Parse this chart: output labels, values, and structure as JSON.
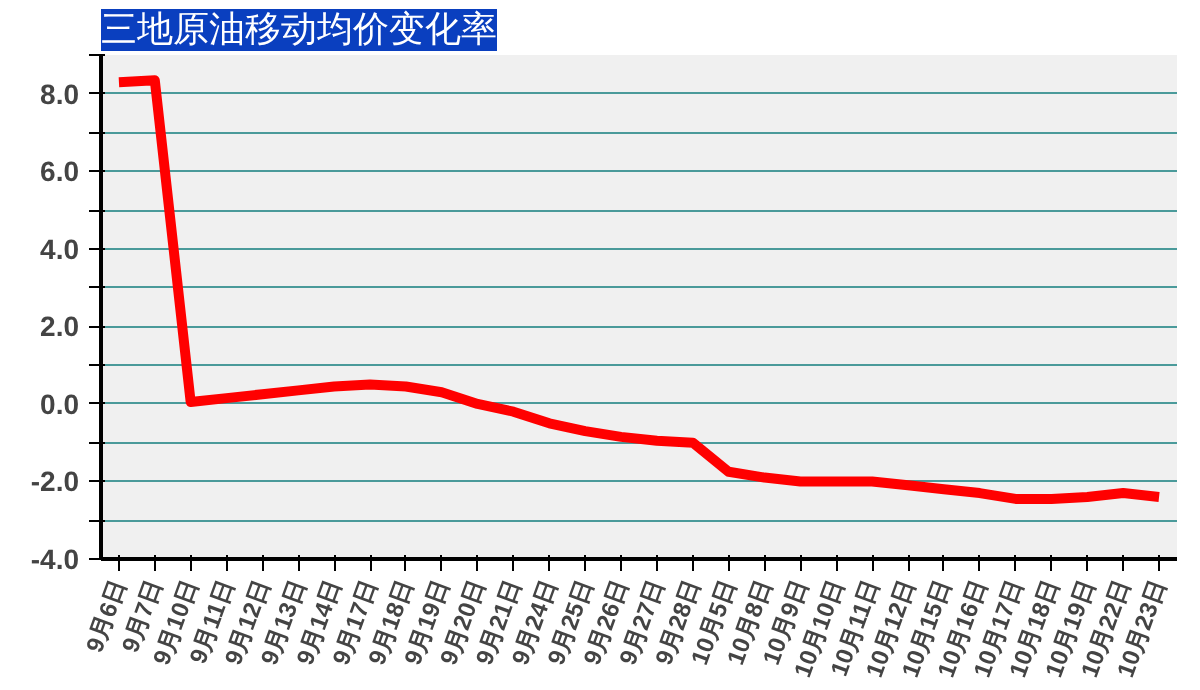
{
  "chart_data": {
    "type": "line",
    "title": "三地原油移动均价变化率",
    "categories": [
      "9月6日",
      "9月7日",
      "9月10日",
      "9月11日",
      "9月12日",
      "9月13日",
      "9月14日",
      "9月17日",
      "9月18日",
      "9月19日",
      "9月20日",
      "9月21日",
      "9月24日",
      "9月25日",
      "9月26日",
      "9月27日",
      "9月28日",
      "10月5日",
      "10月8日",
      "10月9日",
      "10月10日",
      "10月11日",
      "10月12日",
      "10月15日",
      "10月16日",
      "10月17日",
      "10月18日",
      "10月19日",
      "10月22日",
      "10月23日"
    ],
    "series": [
      {
        "color": "#ff0000",
        "values": [
          8.3,
          8.35,
          0.05,
          0.15,
          0.25,
          0.35,
          0.45,
          0.5,
          0.45,
          0.3,
          0.0,
          -0.2,
          -0.5,
          -0.7,
          -0.85,
          -0.95,
          -1.0,
          -1.75,
          -1.9,
          -2.0,
          -2.0,
          -2.0,
          -2.1,
          -2.2,
          -2.3,
          -2.45,
          -2.45,
          -2.4,
          -2.3,
          -2.4
        ]
      }
    ],
    "ylim": [
      -4,
      9
    ],
    "yticks": [
      {
        "value": -4,
        "label": "-4.0"
      },
      {
        "value": -3,
        "label": null
      },
      {
        "value": -2,
        "label": "-2.0"
      },
      {
        "value": -1,
        "label": null
      },
      {
        "value": 0,
        "label": "0.0"
      },
      {
        "value": 1,
        "label": null
      },
      {
        "value": 2,
        "label": "2.0"
      },
      {
        "value": 3,
        "label": null
      },
      {
        "value": 4,
        "label": "4.0"
      },
      {
        "value": 5,
        "label": null
      },
      {
        "value": 6,
        "label": "6.0"
      },
      {
        "value": 7,
        "label": null
      },
      {
        "value": 8,
        "label": "8.0"
      },
      {
        "value": 9,
        "label": null
      }
    ],
    "grid": "y",
    "marker": "none",
    "line_style": "solid"
  }
}
